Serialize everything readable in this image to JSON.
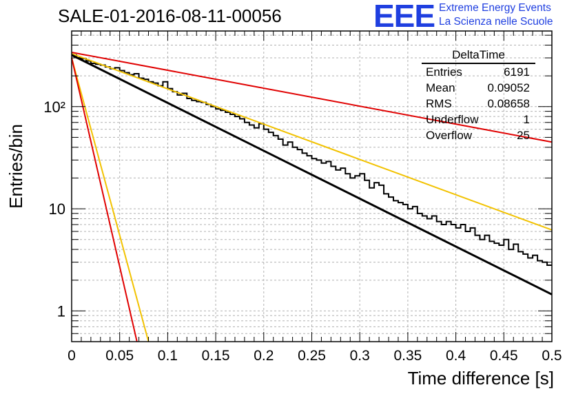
{
  "chart_data": {
    "type": "histogram",
    "title": "SALE-01-2016-08-11-00056",
    "xlabel": "Time difference [s]",
    "ylabel": "Entries/bin",
    "xlim": [
      0,
      0.5
    ],
    "ylim": [
      0.5,
      550
    ],
    "yscale": "log",
    "grid": true,
    "x_ticks": [
      "0",
      "0.05",
      "0.1",
      "0.15",
      "0.2",
      "0.25",
      "0.3",
      "0.35",
      "0.4",
      "0.45",
      "0.5"
    ],
    "y_ticks": [
      "1",
      "10",
      "10²"
    ],
    "bin_width": 0.005,
    "histogram": {
      "name": "DeltaTime",
      "counts": [
        320,
        300,
        295,
        280,
        265,
        260,
        255,
        245,
        235,
        240,
        225,
        215,
        205,
        210,
        190,
        185,
        175,
        170,
        160,
        175,
        150,
        140,
        130,
        135,
        120,
        115,
        112,
        110,
        105,
        100,
        95,
        92,
        88,
        84,
        80,
        76,
        70,
        66,
        62,
        68,
        60,
        56,
        52,
        48,
        42,
        45,
        40,
        38,
        35,
        33,
        31,
        30,
        28,
        29,
        26,
        24,
        25,
        22,
        20,
        21,
        22,
        19,
        16,
        18,
        17,
        14,
        13,
        12,
        11.5,
        11,
        10,
        10.5,
        9,
        8.5,
        8,
        8.5,
        7.5,
        7,
        7.5,
        7,
        6.5,
        7,
        6,
        6.5,
        5.5,
        5,
        5.5,
        4.8,
        4.6,
        4.4,
        5,
        4,
        4.5,
        3.8,
        3.6,
        3.3,
        3.5,
        3.1,
        3,
        2.8
      ],
      "entries": 6191,
      "mean": 0.09052,
      "rms": 0.08658,
      "underflow": 1,
      "overflow": 25
    },
    "fit_lines": [
      {
        "color": "#000000",
        "y0": 320,
        "y1": 1.45
      },
      {
        "color": "#e00000",
        "y0": 340,
        "y1": 45
      },
      {
        "color": "#f2c200",
        "y0": 330,
        "y1": 6.2
      },
      {
        "color": "#f2c200",
        "y0": 300,
        "y_at_0_08": 0.5
      },
      {
        "color": "#e00000",
        "y0": 300,
        "y_at_0_068": 0.5
      }
    ]
  },
  "stats": {
    "title": "DeltaTime",
    "rows": [
      {
        "label": "Entries",
        "value": "6191"
      },
      {
        "label": "Mean",
        "value": "0.09052"
      },
      {
        "label": "RMS",
        "value": "0.08658"
      },
      {
        "label": "Underflow",
        "value": "1"
      },
      {
        "label": "Overflow",
        "value": "25"
      }
    ]
  },
  "logo": {
    "mark": "EEE",
    "line1": "Extreme Energy Events",
    "line2": "La Scienza nelle Scuole"
  },
  "colors": {
    "logo": "#1f3fe0",
    "fit_black": "#000000",
    "fit_red": "#e00000",
    "fit_yellow": "#f2c200"
  }
}
